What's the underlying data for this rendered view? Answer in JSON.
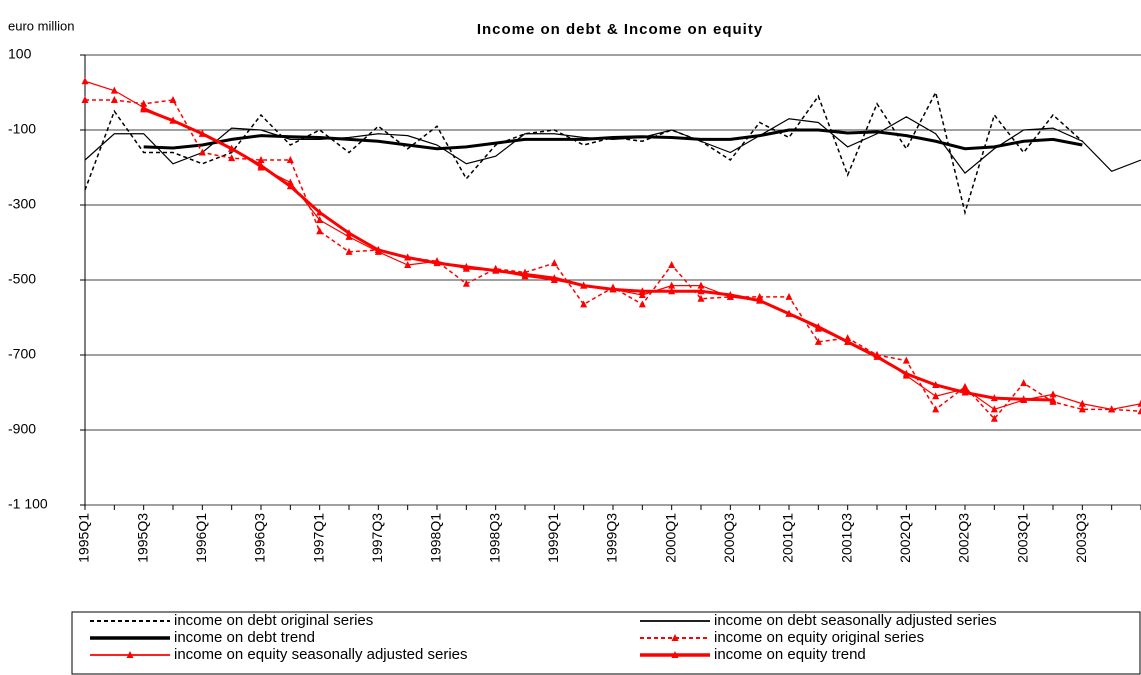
{
  "chart_data": {
    "type": "line",
    "title": "Income on debt & Income on equity",
    "y_axis_label": "euro million",
    "categories": [
      "1995Q1",
      null,
      "1995Q3",
      null,
      "1996Q1",
      null,
      "1996Q3",
      null,
      "1997Q1",
      null,
      "1997Q3",
      null,
      "1998Q1",
      null,
      "1998Q3",
      null,
      "1999Q1",
      null,
      "1999Q3",
      null,
      "2000Q1",
      null,
      "2000Q3",
      null,
      "2001Q1",
      null,
      "2001Q3",
      null,
      "2002Q1",
      null,
      "2002Q3",
      null,
      "2003Q1",
      null,
      "2003Q3",
      null,
      null
    ],
    "ylim": [
      -1100,
      100
    ],
    "yticks": [
      {
        "value": -1100,
        "label": "-1 100"
      },
      -900,
      -700,
      -500,
      -300,
      -100,
      100
    ],
    "grid": true,
    "series": [
      {
        "name": "income on debt original series",
        "color": "#000000",
        "dashed": true,
        "line_width": 1.5,
        "marker": "none",
        "values": [
          -260,
          -50,
          -160,
          -160,
          -190,
          -160,
          -60,
          -140,
          -100,
          -160,
          -90,
          -150,
          -90,
          -230,
          -140,
          -110,
          -100,
          -140,
          -120,
          -130,
          -100,
          -130,
          -180,
          -80,
          -120,
          -10,
          -220,
          -30,
          -150,
          0,
          -320,
          -60,
          -160,
          -60,
          -130,
          null,
          null
        ]
      },
      {
        "name": "income on debt seasonally adjusted series",
        "color": "#000000",
        "dashed": false,
        "line_width": 1.2,
        "marker": "none",
        "values": [
          -180,
          -110,
          -110,
          -190,
          -160,
          -95,
          -100,
          -125,
          -125,
          -120,
          -110,
          -115,
          -140,
          -190,
          -170,
          -110,
          -110,
          -120,
          -125,
          -120,
          -100,
          -130,
          -160,
          -115,
          -70,
          -80,
          -145,
          -110,
          -65,
          -110,
          -215,
          -150,
          -100,
          -95,
          -130,
          -210,
          -180
        ]
      },
      {
        "name": "income on debt trend",
        "color": "#000000",
        "dashed": false,
        "line_width": 3,
        "marker": "none",
        "values": [
          null,
          null,
          -145,
          -148,
          -140,
          -125,
          -115,
          -118,
          -120,
          -125,
          -130,
          -140,
          -150,
          -145,
          -135,
          -125,
          -125,
          -125,
          -120,
          -118,
          -120,
          -125,
          -125,
          -115,
          -100,
          -100,
          -108,
          -105,
          -115,
          -130,
          -150,
          -145,
          -130,
          -125,
          -140,
          null,
          null
        ]
      },
      {
        "name": "income on equity original series",
        "color": "#ff0000",
        "dashed": true,
        "line_width": 1.5,
        "marker": "triangle",
        "values": [
          -20,
          -20,
          -30,
          -20,
          -160,
          -175,
          -180,
          -180,
          -370,
          -425,
          -420,
          -440,
          -450,
          -510,
          -470,
          -480,
          -455,
          -565,
          -520,
          -565,
          -460,
          -550,
          -545,
          -545,
          -545,
          -665,
          -655,
          -700,
          -715,
          -845,
          -785,
          -870,
          -775,
          -825,
          -845,
          -845,
          -850
        ]
      },
      {
        "name": "income on equity seasonally adjusted series",
        "color": "#ff0000",
        "dashed": false,
        "line_width": 1.2,
        "marker": "triangle",
        "values": [
          30,
          5,
          -40,
          -75,
          -110,
          -150,
          -200,
          -240,
          -340,
          -385,
          -425,
          -460,
          -450,
          -470,
          -475,
          -490,
          -500,
          -515,
          -525,
          -540,
          -515,
          -515,
          -545,
          -555,
          -590,
          -630,
          -665,
          -700,
          -755,
          -810,
          -790,
          -845,
          -820,
          -805,
          -830,
          -845,
          -830
        ]
      },
      {
        "name": "income on equity trend",
        "color": "#ff0000",
        "dashed": false,
        "line_width": 3,
        "marker": "triangle",
        "values": [
          null,
          null,
          -45,
          -75,
          -110,
          -150,
          -195,
          -250,
          -320,
          -375,
          -420,
          -440,
          -455,
          -465,
          -475,
          -485,
          -495,
          -515,
          -525,
          -530,
          -530,
          -530,
          -540,
          -555,
          -590,
          -625,
          -665,
          -705,
          -750,
          -780,
          -800,
          -815,
          -818,
          -820,
          null,
          null,
          null
        ]
      }
    ]
  }
}
